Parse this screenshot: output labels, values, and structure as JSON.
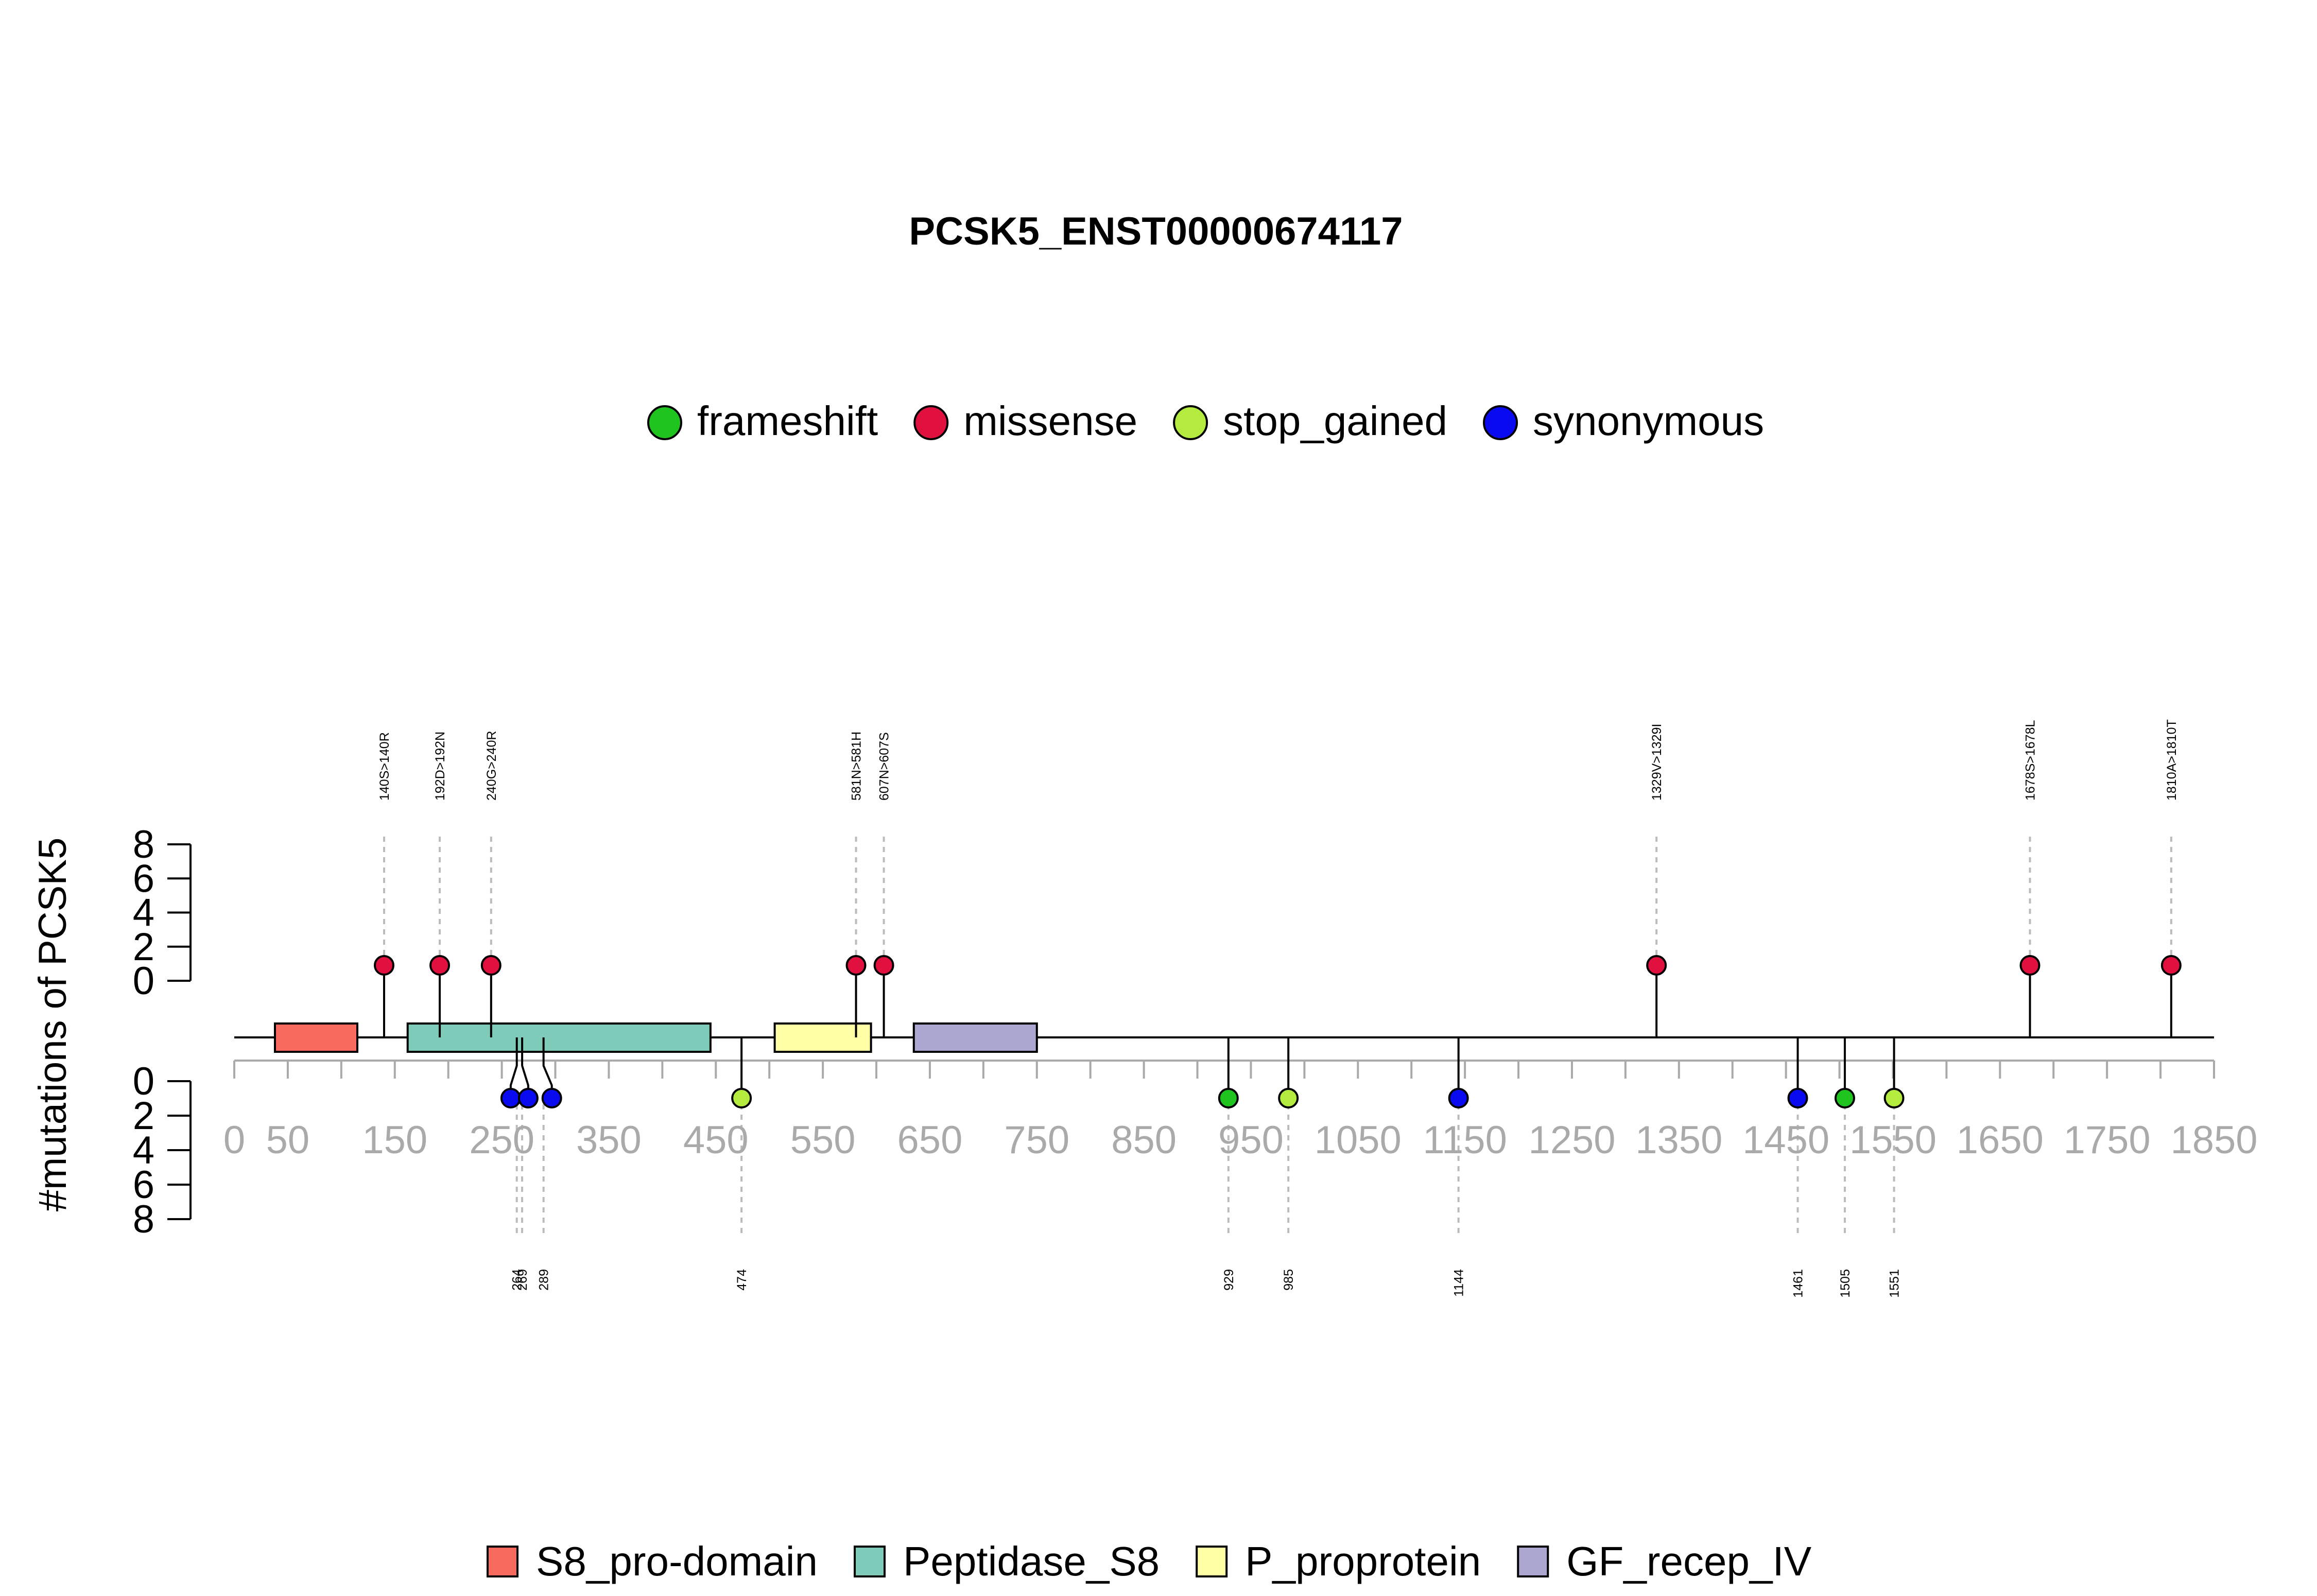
{
  "chart_data": {
    "type": "lollipop",
    "title": "PCSK5_ENST00000674117",
    "ylabel": "#mutations of PCSK5",
    "x_ticks": [
      0,
      50,
      150,
      250,
      350,
      450,
      550,
      650,
      750,
      850,
      950,
      1050,
      1150,
      1250,
      1350,
      1450,
      1550,
      1650,
      1750,
      1850
    ],
    "x_range": [
      0,
      1850
    ],
    "y_ticks": [
      0,
      2,
      4,
      6,
      8
    ],
    "y_range": [
      0,
      8
    ],
    "legend_mutation": [
      {
        "label": "frameshift",
        "color": "#1FC41F"
      },
      {
        "label": "missense",
        "color": "#E0103F"
      },
      {
        "label": "stop_gained",
        "color": "#B3EB3F"
      },
      {
        "label": "synonymous",
        "color": "#0A0AF0"
      }
    ],
    "legend_domains": [
      {
        "label": "S8_pro-domain",
        "color": "#F8695E"
      },
      {
        "label": "Peptidase_S8",
        "color": "#7ECBBA"
      },
      {
        "label": "P_proprotein",
        "color": "#FFFFA6"
      },
      {
        "label": "GF_recep_IV",
        "color": "#ACA7D1"
      }
    ],
    "domains": [
      {
        "name": "S8_pro-domain",
        "start": 38,
        "end": 115
      },
      {
        "name": "Peptidase_S8",
        "start": 162,
        "end": 445
      },
      {
        "name": "P_proprotein",
        "start": 505,
        "end": 595
      },
      {
        "name": "GF_recep_IV",
        "start": 635,
        "end": 750
      }
    ],
    "mutations_above": [
      {
        "position": 140,
        "label": "140S>140R",
        "type": "missense",
        "count": 1
      },
      {
        "position": 192,
        "label": "192D>192N",
        "type": "missense",
        "count": 1
      },
      {
        "position": 240,
        "label": "240G>240R",
        "type": "missense",
        "count": 1
      },
      {
        "position": 581,
        "label": "581N>581H",
        "type": "missense",
        "count": 1
      },
      {
        "position": 607,
        "label": "607N>607S",
        "type": "missense",
        "count": 1
      },
      {
        "position": 1329,
        "label": "1329V>1329I",
        "type": "missense",
        "count": 1
      },
      {
        "position": 1678,
        "label": "1678S>1678L",
        "type": "missense",
        "count": 1
      },
      {
        "position": 1810,
        "label": "1810A>1810T",
        "type": "missense",
        "count": 1
      }
    ],
    "mutations_below": [
      {
        "position": 264,
        "label": "264",
        "type": "synonymous",
        "count": 1
      },
      {
        "position": 269,
        "label": "269",
        "type": "synonymous",
        "count": 1
      },
      {
        "position": 289,
        "label": "289",
        "type": "synonymous",
        "count": 1
      },
      {
        "position": 474,
        "label": "474",
        "type": "stop_gained",
        "count": 1
      },
      {
        "position": 929,
        "label": "929",
        "type": "frameshift",
        "count": 1
      },
      {
        "position": 985,
        "label": "985",
        "type": "stop_gained",
        "count": 1
      },
      {
        "position": 1144,
        "label": "1144",
        "type": "synonymous",
        "count": 1
      },
      {
        "position": 1461,
        "label": "1461",
        "type": "synonymous",
        "count": 1
      },
      {
        "position": 1505,
        "label": "1505",
        "type": "frameshift",
        "count": 1
      },
      {
        "position": 1551,
        "label": "1551",
        "type": "stop_gained",
        "count": 1
      }
    ]
  }
}
